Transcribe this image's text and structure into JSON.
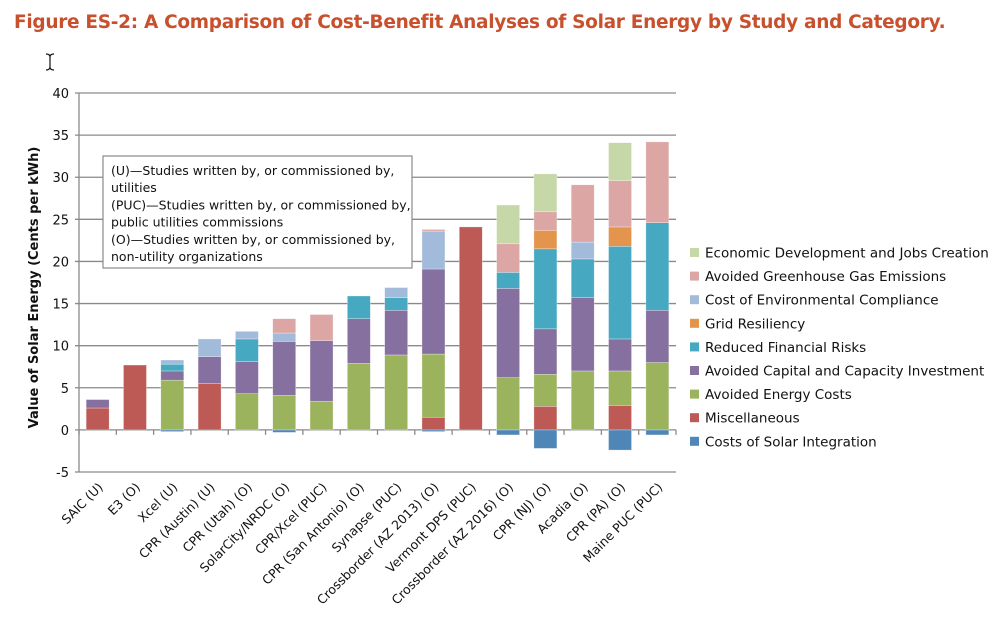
{
  "title": "Figure ES-2: A Comparison of Cost-Benefit Analyses of Solar Energy by Study and Category.",
  "chart_data": {
    "type": "bar",
    "stacked": true,
    "ylabel": "Value of Solar Energy (Cents per kWh)",
    "xlabel": "",
    "ylim": [
      -5,
      40
    ],
    "yticks": [
      -5,
      0,
      5,
      10,
      15,
      20,
      25,
      30,
      35,
      40
    ],
    "grid": true,
    "legend_position": "right",
    "annotation": [
      "(U)—Studies written by, or commissioned by,",
      "utilities",
      "(PUC)—Studies written by, or commissioned by,",
      "public utilities commissions",
      "(O)—Studies written by, or commissioned by,",
      "non-utility organizations"
    ],
    "categories": [
      "SAIC (U)",
      "E3 (O)",
      "Xcel (U)",
      "CPR (Austin) (U)",
      "CPR (Utah) (O)",
      "SolarCity/NRDC (O)",
      "CPR/Xcel (PUC)",
      "CPR (San Antonio) (O)",
      "Synapse (PUC)",
      "Crossborder (AZ 2013) (O)",
      "Vermont DPS (PUC)",
      "Crossborder (AZ 2016) (O)",
      "CPR (NJ) (O)",
      "Acadia (O)",
      "CPR (PA) (O)",
      "Maine PUC (PUC)"
    ],
    "series": [
      {
        "name": "Costs of Solar Integration",
        "color": "#4f86b8",
        "values": [
          0,
          0,
          -0.2,
          0,
          0,
          -0.3,
          0,
          0,
          0,
          -0.2,
          0,
          -0.6,
          -2.2,
          0,
          -2.4,
          -0.6
        ]
      },
      {
        "name": "Miscellaneous",
        "color": "#bd5a55",
        "values": [
          2.6,
          7.7,
          0,
          5.5,
          0,
          0,
          0,
          0,
          0,
          1.5,
          24.1,
          0,
          2.8,
          0,
          2.9,
          0
        ]
      },
      {
        "name": "Avoided Energy Costs",
        "color": "#9bb35c",
        "values": [
          0,
          0,
          5.9,
          0,
          4.3,
          4.1,
          3.4,
          7.9,
          8.9,
          7.5,
          0,
          6.2,
          3.8,
          7.0,
          4.1,
          8.0
        ]
      },
      {
        "name": "Avoided Capital and Capacity Investment",
        "color": "#8570a0",
        "values": [
          1.0,
          0,
          1.1,
          3.2,
          3.8,
          6.4,
          7.2,
          5.3,
          5.3,
          10.1,
          0,
          10.6,
          5.4,
          8.7,
          3.8,
          6.2
        ]
      },
      {
        "name": "Reduced Financial Risks",
        "color": "#47a9c1",
        "values": [
          0,
          0,
          0.8,
          0,
          2.7,
          0,
          0,
          2.7,
          1.5,
          0,
          0,
          1.9,
          9.5,
          4.6,
          11.0,
          10.4
        ]
      },
      {
        "name": "Grid Resiliency",
        "color": "#e3944d",
        "values": [
          0,
          0,
          0,
          0,
          0,
          0,
          0,
          0,
          0,
          0,
          0,
          0,
          2.2,
          0,
          2.3,
          0
        ]
      },
      {
        "name": "Cost of Environmental Compliance",
        "color": "#a3bbdb",
        "values": [
          0,
          0,
          0.5,
          2.1,
          0.9,
          1.0,
          0,
          0,
          1.2,
          4.5,
          0,
          0,
          0,
          2.0,
          0,
          0
        ]
      },
      {
        "name": "Avoided Greenhouse Gas Emissions",
        "color": "#dba6a4",
        "values": [
          0,
          0,
          0,
          0,
          0,
          1.7,
          3.1,
          0,
          0,
          0.2,
          0,
          3.4,
          2.2,
          6.8,
          5.5,
          9.6
        ]
      },
      {
        "name": "Economic Development and Jobs Creation",
        "color": "#c6d7a8",
        "values": [
          0,
          0,
          0,
          0,
          0,
          0,
          0,
          0,
          0,
          0,
          0,
          4.6,
          4.5,
          0,
          4.5,
          0
        ]
      }
    ],
    "legend_order": [
      "Economic Development and Jobs Creation",
      "Avoided Greenhouse Gas Emissions",
      "Cost of Environmental Compliance",
      "Grid Resiliency",
      "Reduced Financial Risks",
      "Avoided Capital and Capacity Investment",
      "Avoided Energy Costs",
      "Miscellaneous",
      "Costs of Solar Integration"
    ]
  }
}
